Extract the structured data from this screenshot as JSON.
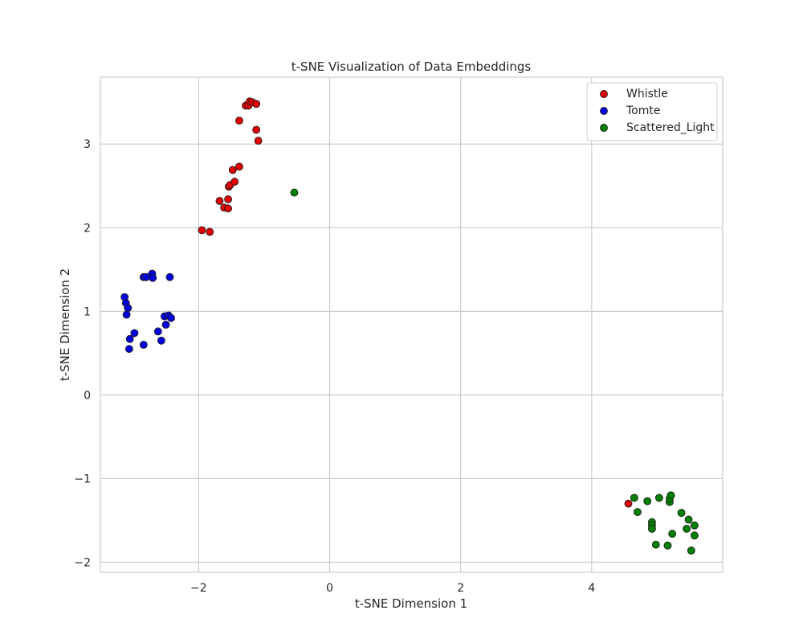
{
  "chart_data": {
    "type": "scatter",
    "title": "t-SNE Visualization of Data Embeddings",
    "xlabel": "t-SNE Dimension 1",
    "ylabel": "t-SNE Dimension 2",
    "xlim": [
      -3.5,
      6.0
    ],
    "ylim": [
      -2.12,
      3.8
    ],
    "xticks": [
      -2,
      0,
      2,
      4
    ],
    "yticks": [
      -2,
      -1,
      0,
      1,
      2,
      3
    ],
    "xtick_labels": [
      "−2",
      "0",
      "2",
      "4"
    ],
    "ytick_labels": [
      "−2",
      "−1",
      "0",
      "1",
      "2",
      "3"
    ],
    "grid": true,
    "legend_position": "top-right",
    "series": [
      {
        "name": "Whistle",
        "color": "#e00000",
        "points": [
          [
            -1.95,
            1.97
          ],
          [
            -1.83,
            1.95
          ],
          [
            -1.68,
            2.32
          ],
          [
            -1.61,
            2.24
          ],
          [
            -1.55,
            2.23
          ],
          [
            -1.55,
            2.34
          ],
          [
            -1.54,
            2.49
          ],
          [
            -1.52,
            2.51
          ],
          [
            -1.48,
            2.69
          ],
          [
            -1.45,
            2.55
          ],
          [
            -1.38,
            2.73
          ],
          [
            -1.38,
            3.28
          ],
          [
            -1.28,
            3.46
          ],
          [
            -1.24,
            3.46
          ],
          [
            -1.22,
            3.51
          ],
          [
            -1.18,
            3.5
          ],
          [
            -1.12,
            3.48
          ],
          [
            -1.12,
            3.17
          ],
          [
            -1.09,
            3.04
          ],
          [
            4.56,
            -1.3
          ]
        ]
      },
      {
        "name": "Tomte",
        "color": "#0000dd",
        "points": [
          [
            -3.13,
            1.17
          ],
          [
            -3.11,
            1.1
          ],
          [
            -3.08,
            1.04
          ],
          [
            -3.1,
            0.96
          ],
          [
            -3.05,
            0.67
          ],
          [
            -3.06,
            0.55
          ],
          [
            -2.98,
            0.74
          ],
          [
            -2.84,
            0.6
          ],
          [
            -2.84,
            1.41
          ],
          [
            -2.8,
            1.41
          ],
          [
            -2.71,
            1.45
          ],
          [
            -2.7,
            1.4
          ],
          [
            -2.62,
            0.76
          ],
          [
            -2.57,
            0.65
          ],
          [
            -2.52,
            0.94
          ],
          [
            -2.5,
            0.84
          ],
          [
            -2.46,
            0.95
          ],
          [
            -2.44,
            1.41
          ],
          [
            -2.42,
            0.92
          ]
        ]
      },
      {
        "name": "Scattered_Light",
        "color": "#008000",
        "points": [
          [
            -0.54,
            2.42
          ],
          [
            4.65,
            -1.23
          ],
          [
            4.7,
            -1.4
          ],
          [
            4.85,
            -1.27
          ],
          [
            4.92,
            -1.52
          ],
          [
            4.92,
            -1.56
          ],
          [
            4.92,
            -1.6
          ],
          [
            4.98,
            -1.79
          ],
          [
            5.03,
            -1.23
          ],
          [
            5.16,
            -1.8
          ],
          [
            5.19,
            -1.28
          ],
          [
            5.19,
            -1.24
          ],
          [
            5.21,
            -1.2
          ],
          [
            5.23,
            -1.66
          ],
          [
            5.37,
            -1.41
          ],
          [
            5.45,
            -1.6
          ],
          [
            5.48,
            -1.49
          ],
          [
            5.52,
            -1.86
          ],
          [
            5.57,
            -1.56
          ],
          [
            5.57,
            -1.68
          ]
        ]
      }
    ]
  }
}
